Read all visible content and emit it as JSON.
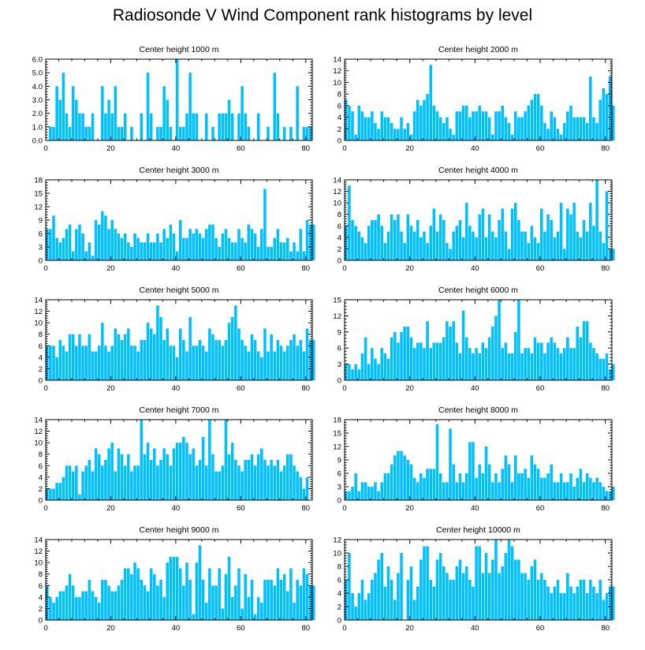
{
  "title": "Radiosonde V Wind Component rank histograms by level",
  "bar_color": "#00bfff",
  "chart_data": [
    {
      "type": "bar",
      "title": "Center height 1000 m",
      "xlim": [
        0,
        82
      ],
      "ylim": [
        0,
        6
      ],
      "yticks": [
        "0.0",
        "1.0",
        "2.0",
        "3.0",
        "4.0",
        "5.0",
        "6.0"
      ],
      "xticks": [
        "0",
        "20",
        "40",
        "60",
        "80"
      ],
      "values": [
        0,
        1,
        1,
        4,
        3,
        5,
        2,
        1,
        4,
        3,
        2,
        2,
        1,
        1,
        2,
        0,
        0,
        4,
        2,
        3,
        2,
        4,
        1,
        1,
        2,
        0,
        1,
        0,
        0,
        2,
        0,
        5,
        2,
        0,
        1,
        1,
        4,
        3,
        1,
        0,
        6,
        1,
        1,
        2,
        5,
        2,
        2,
        0,
        0,
        2,
        0,
        1,
        0,
        2,
        2,
        2,
        3,
        2,
        0,
        2,
        4,
        2,
        1,
        0,
        0,
        2,
        0,
        0,
        1,
        0,
        5,
        2,
        0,
        1,
        0,
        1,
        0,
        4,
        0,
        1,
        1,
        1
      ]
    },
    {
      "type": "bar",
      "title": "Center height 2000 m",
      "xlim": [
        0,
        82
      ],
      "ylim": [
        0,
        14
      ],
      "yticks": [
        "0",
        "2",
        "4",
        "6",
        "8",
        "10",
        "12",
        "14"
      ],
      "xticks": [
        "0",
        "20",
        "40",
        "60",
        "80"
      ],
      "values": [
        7,
        6,
        5,
        1,
        6,
        5,
        4,
        4,
        5,
        3,
        2,
        5,
        4,
        4,
        3,
        2,
        2,
        4,
        2,
        3,
        1,
        5,
        7,
        6,
        7,
        8,
        13,
        6,
        5,
        4,
        3,
        4,
        2,
        1,
        5,
        5,
        6,
        6,
        4,
        5,
        5,
        6,
        5,
        5,
        4,
        1,
        5,
        5,
        6,
        4,
        3,
        1,
        5,
        4,
        4,
        5,
        6,
        7,
        8,
        8,
        6,
        3,
        2,
        5,
        4,
        2,
        1,
        3,
        5,
        6,
        4,
        4,
        4,
        4,
        3,
        11,
        4,
        3,
        7,
        9,
        8,
        11,
        6
      ]
    },
    {
      "type": "bar",
      "title": "Center height 3000 m",
      "xlim": [
        0,
        82
      ],
      "ylim": [
        0,
        18
      ],
      "yticks": [
        "0",
        "3",
        "6",
        "9",
        "12",
        "15",
        "18"
      ],
      "xticks": [
        "0",
        "20",
        "40",
        "60",
        "80"
      ],
      "values": [
        7,
        7,
        10,
        5,
        4,
        5,
        7,
        8,
        2,
        7,
        8,
        6,
        2,
        4,
        1,
        9,
        8,
        11,
        10,
        7,
        9,
        7,
        6,
        5,
        6,
        4,
        3,
        6,
        5,
        4,
        4,
        6,
        4,
        4,
        6,
        4,
        7,
        5,
        8,
        6,
        2,
        9,
        5,
        5,
        7,
        6,
        7,
        6,
        5,
        7,
        8,
        8,
        5,
        3,
        6,
        7,
        5,
        4,
        4,
        7,
        5,
        4,
        8,
        7,
        6,
        3,
        7,
        16,
        3,
        3,
        5,
        7,
        4,
        4,
        5,
        2,
        4,
        2,
        7,
        2,
        9,
        8,
        8
      ]
    },
    {
      "type": "bar",
      "title": "Center height 4000 m",
      "xlim": [
        0,
        82
      ],
      "ylim": [
        0,
        14
      ],
      "yticks": [
        "0",
        "2",
        "4",
        "6",
        "8",
        "10",
        "12",
        "14"
      ],
      "xticks": [
        "0",
        "20",
        "40",
        "60",
        "80"
      ],
      "values": [
        6,
        13,
        7,
        6,
        5,
        4,
        3,
        6,
        7,
        7,
        8,
        6,
        3,
        5,
        8,
        7,
        8,
        5,
        3,
        8,
        6,
        5,
        7,
        4,
        5,
        3,
        6,
        9,
        5,
        8,
        7,
        3,
        2,
        5,
        6,
        7,
        4,
        10,
        6,
        5,
        4,
        8,
        9,
        4,
        8,
        5,
        4,
        7,
        9,
        5,
        2,
        9,
        10,
        7,
        5,
        5,
        3,
        6,
        4,
        3,
        9,
        5,
        8,
        7,
        4,
        5,
        10,
        2,
        9,
        8,
        10,
        5,
        4,
        7,
        5,
        10,
        6,
        14,
        5,
        3,
        12,
        2,
        2
      ]
    },
    {
      "type": "bar",
      "title": "Center height 5000 m",
      "xlim": [
        0,
        82
      ],
      "ylim": [
        0,
        14
      ],
      "yticks": [
        "0",
        "2",
        "4",
        "6",
        "8",
        "10",
        "12",
        "14"
      ],
      "xticks": [
        "0",
        "20",
        "40",
        "60",
        "80"
      ],
      "values": [
        6,
        6,
        6,
        4,
        7,
        6,
        5,
        8,
        8,
        6,
        8,
        6,
        6,
        8,
        5,
        5,
        6,
        10,
        6,
        5,
        6,
        9,
        8,
        7,
        8,
        9,
        6,
        6,
        5,
        7,
        7,
        10,
        9,
        8,
        13,
        11,
        7,
        9,
        6,
        6,
        4,
        9,
        7,
        5,
        11,
        6,
        6,
        7,
        6,
        5,
        9,
        8,
        7,
        7,
        6,
        7,
        10,
        11,
        13,
        9,
        7,
        6,
        5,
        8,
        7,
        5,
        4,
        9,
        5,
        8,
        5,
        7,
        6,
        5,
        6,
        7,
        8,
        6,
        7,
        5,
        9,
        7,
        7
      ]
    },
    {
      "type": "bar",
      "title": "Center height 6000 m",
      "xlim": [
        0,
        82
      ],
      "ylim": [
        0,
        15
      ],
      "yticks": [
        "0",
        "3",
        "6",
        "9",
        "12",
        "15"
      ],
      "xticks": [
        "0",
        "20",
        "40",
        "60",
        "80"
      ],
      "values": [
        3,
        3,
        2,
        3,
        2,
        5,
        8,
        3,
        6,
        4,
        3,
        6,
        5,
        4,
        8,
        9,
        7,
        9,
        10,
        10,
        8,
        6,
        7,
        7,
        6,
        11,
        6,
        7,
        7,
        7,
        8,
        11,
        10,
        11,
        7,
        5,
        13,
        8,
        6,
        5,
        6,
        5,
        7,
        6,
        8,
        10,
        12,
        15,
        6,
        7,
        5,
        5,
        9,
        15,
        5,
        6,
        6,
        5,
        8,
        7,
        7,
        5,
        7,
        8,
        7,
        6,
        5,
        6,
        8,
        6,
        6,
        10,
        8,
        11,
        11,
        7,
        6,
        5,
        4,
        4,
        5,
        2,
        3
      ]
    },
    {
      "type": "bar",
      "title": "Center height 7000 m",
      "xlim": [
        0,
        82
      ],
      "ylim": [
        0,
        14
      ],
      "yticks": [
        "0",
        "2",
        "4",
        "6",
        "8",
        "10",
        "12",
        "14"
      ],
      "xticks": [
        "0",
        "20",
        "40",
        "60",
        "80"
      ],
      "values": [
        2,
        2,
        2,
        3,
        3,
        4,
        6,
        6,
        5,
        6,
        1,
        5,
        6,
        7,
        5,
        9,
        8,
        6,
        7,
        9,
        10,
        5,
        9,
        8,
        6,
        8,
        5,
        6,
        6,
        14,
        8,
        10,
        7,
        9,
        6,
        7,
        9,
        8,
        6,
        9,
        10,
        10,
        11,
        10,
        8,
        9,
        6,
        7,
        11,
        6,
        14,
        8,
        5,
        5,
        6,
        14,
        8,
        10,
        7,
        6,
        5,
        7,
        7,
        8,
        6,
        8,
        9,
        7,
        6,
        7,
        6,
        7,
        5,
        6,
        8,
        8,
        6,
        5,
        4,
        2,
        4
      ]
    },
    {
      "type": "bar",
      "title": "Center height 8000 m",
      "xlim": [
        0,
        82
      ],
      "ylim": [
        0,
        18
      ],
      "yticks": [
        "0",
        "3",
        "6",
        "9",
        "12",
        "15",
        "18"
      ],
      "xticks": [
        "0",
        "20",
        "40",
        "60",
        "80"
      ],
      "values": [
        2,
        2,
        3,
        6,
        2,
        4,
        4,
        3,
        3,
        4,
        2,
        4,
        6,
        6,
        8,
        10,
        11,
        11,
        10,
        9,
        8,
        5,
        4,
        6,
        5,
        7,
        7,
        7,
        17,
        6,
        4,
        4,
        16,
        8,
        4,
        6,
        4,
        6,
        13,
        13,
        5,
        8,
        6,
        12,
        8,
        4,
        6,
        4,
        7,
        10,
        8,
        4,
        10,
        6,
        6,
        7,
        5,
        10,
        8,
        7,
        5,
        5,
        6,
        8,
        4,
        4,
        6,
        4,
        4,
        6,
        3,
        5,
        7,
        4,
        6,
        5,
        4,
        5,
        4,
        3,
        2,
        2,
        3
      ]
    },
    {
      "type": "bar",
      "title": "Center height 9000 m",
      "xlim": [
        0,
        82
      ],
      "ylim": [
        0,
        14
      ],
      "yticks": [
        "0",
        "2",
        "4",
        "6",
        "8",
        "10",
        "12",
        "14"
      ],
      "xticks": [
        "0",
        "20",
        "40",
        "60",
        "80"
      ],
      "values": [
        6,
        4,
        3,
        4,
        5,
        5,
        6,
        8,
        6,
        4,
        4,
        5,
        5,
        7,
        5,
        4,
        3,
        7,
        7,
        6,
        5,
        5,
        6,
        7,
        9,
        9,
        8,
        10,
        9,
        7,
        6,
        5,
        9,
        8,
        6,
        7,
        4,
        10,
        11,
        11,
        11,
        9,
        6,
        10,
        7,
        1,
        10,
        13,
        7,
        3,
        9,
        6,
        6,
        9,
        2,
        8,
        11,
        4,
        6,
        9,
        2,
        8,
        4,
        7,
        1,
        4,
        3,
        7,
        7,
        7,
        6,
        9,
        7,
        8,
        5,
        9,
        3,
        7,
        6,
        9,
        8,
        6,
        6
      ]
    },
    {
      "type": "bar",
      "title": "Center height 10000 m",
      "xlim": [
        0,
        82
      ],
      "ylim": [
        0,
        12
      ],
      "yticks": [
        "0",
        "2",
        "4",
        "6",
        "8",
        "10",
        "12"
      ],
      "xticks": [
        "0",
        "20",
        "40",
        "60",
        "80"
      ],
      "values": [
        6,
        10,
        4,
        2,
        4,
        6,
        3,
        4,
        6,
        7,
        9,
        10,
        5,
        8,
        6,
        3,
        7,
        10,
        0,
        6,
        8,
        3,
        5,
        9,
        11,
        11,
        6,
        5,
        9,
        10,
        8,
        7,
        6,
        6,
        8,
        9,
        7,
        8,
        6,
        5,
        11,
        11,
        7,
        10,
        7,
        9,
        12,
        7,
        8,
        10,
        12,
        11,
        9,
        9,
        7,
        7,
        6,
        8,
        9,
        6,
        7,
        6,
        5,
        4,
        5,
        6,
        4,
        4,
        7,
        5,
        4,
        5,
        6,
        6,
        4,
        6,
        5,
        4,
        6,
        3,
        4,
        5,
        5
      ]
    }
  ]
}
